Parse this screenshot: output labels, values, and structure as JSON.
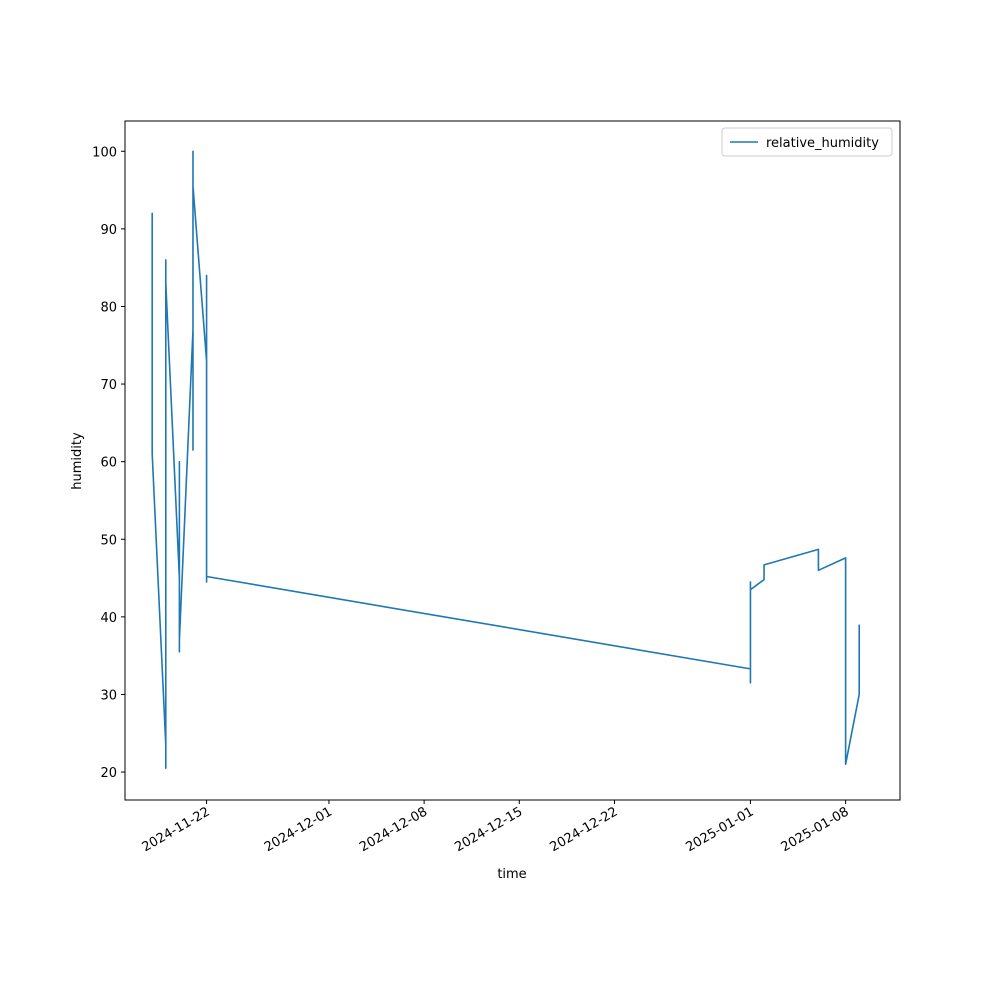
{
  "chart_data": {
    "type": "line",
    "x_label": "time",
    "y_label": "humidity",
    "x": [
      "2024-11-18",
      "2024-11-18",
      "2024-11-18",
      "2024-11-18",
      "2024-11-18",
      "2024-11-18",
      "2024-11-18",
      "2024-11-19",
      "2024-11-19",
      "2024-11-19",
      "2024-11-19",
      "2024-11-19",
      "2024-11-19",
      "2024-11-19",
      "2024-11-19",
      "2024-11-19",
      "2024-11-20",
      "2024-11-20",
      "2024-11-20",
      "2024-11-20",
      "2024-11-20",
      "2024-11-20",
      "2024-11-20",
      "2024-11-20",
      "2024-11-21",
      "2024-11-21",
      "2024-11-21",
      "2024-11-21",
      "2024-11-21",
      "2024-11-21",
      "2024-11-21",
      "2024-11-21",
      "2024-11-21",
      "2024-11-21",
      "2024-11-22",
      "2024-11-22",
      "2024-11-22",
      "2024-11-22",
      "2024-11-22",
      "2025-01-01",
      "2025-01-01",
      "2025-01-01",
      "2025-01-01",
      "2025-01-01",
      "2025-01-02",
      "2025-01-02",
      "2025-01-06",
      "2025-01-06",
      "2025-01-08",
      "2025-01-08",
      "2025-01-09",
      "2025-01-09",
      "2025-01-09",
      "2025-01-09",
      "2025-01-09"
    ],
    "series": [
      {
        "name": "relative_humidity",
        "color": "#1f77b4",
        "values": [
          90,
          88.5,
          91,
          89,
          92,
          89.5,
          61,
          23.5,
          20.5,
          40,
          70,
          80,
          86,
          84,
          85.5,
          83,
          45,
          35.5,
          60,
          52,
          43,
          46,
          42.5,
          37,
          77,
          73,
          95,
          92,
          100,
          93,
          97,
          85,
          61.5,
          95.5,
          73,
          84,
          44.5,
          47.5,
          45.2,
          33.3,
          31.5,
          41,
          44.5,
          43.5,
          44.8,
          46.7,
          48.7,
          46,
          47.6,
          21,
          30,
          36.5,
          38,
          34,
          39
        ]
      }
    ],
    "xlim": [
      "2024-11-16",
      "2025-01-12"
    ],
    "xticks": [
      "2024-11-22",
      "2024-12-01",
      "2024-12-08",
      "2024-12-15",
      "2024-12-22",
      "2025-01-01",
      "2025-01-08"
    ],
    "ylim": [
      16.4,
      103.9
    ],
    "yticks": [
      20,
      30,
      40,
      50,
      60,
      70,
      80,
      90,
      100
    ],
    "legend": "upper right"
  }
}
